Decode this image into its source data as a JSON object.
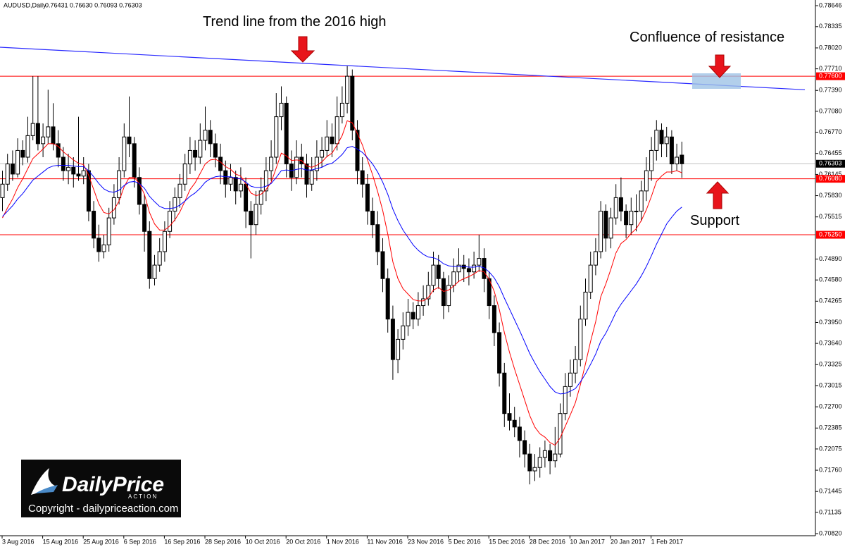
{
  "chart_data": {
    "type": "candlestick",
    "title": "AUDUSD,Daily",
    "title_values": "0.76431 0.76630 0.76093 0.76303",
    "ylim": [
      0.70789,
      0.7873
    ],
    "yticks": [
      0.78646,
      0.78335,
      {
        "value": 0.7802,
        "label": "0.78020"
      },
      {
        "value": 0.7771,
        "label": "0.77710"
      },
      {
        "value": 0.7739,
        "label": "0.77390"
      },
      {
        "value": 0.7708,
        "label": "0.77080"
      },
      {
        "value": 0.7677,
        "label": "0.76770"
      },
      0.76455,
      0.76145,
      {
        "value": 0.7583,
        "label": "0.75830"
      },
      0.75515,
      {
        "value": 0.7489,
        "label": "0.74890"
      },
      {
        "value": 0.7458,
        "label": "0.74580"
      },
      0.74265,
      {
        "value": 0.7395,
        "label": "0.73950"
      },
      {
        "value": 0.7364,
        "label": "0.73640"
      },
      0.73325,
      0.73015,
      {
        "value": 0.727,
        "label": "0.72700"
      },
      0.72385,
      0.72075,
      {
        "value": 0.7176,
        "label": "0.71760"
      },
      0.71445,
      0.71135,
      {
        "value": 0.7082,
        "label": "0.70820"
      }
    ],
    "categories": [
      "3 Aug 2016",
      null,
      null,
      null,
      null,
      null,
      null,
      null,
      "15 Aug 2016",
      null,
      null,
      null,
      null,
      null,
      null,
      null,
      "25 Aug 2016",
      null,
      null,
      null,
      null,
      null,
      null,
      null,
      "6 Sep 2016",
      null,
      null,
      null,
      null,
      null,
      null,
      null,
      "16 Sep 2016",
      null,
      null,
      null,
      null,
      null,
      null,
      null,
      "28 Sep 2016",
      null,
      null,
      null,
      null,
      null,
      null,
      null,
      "10 Oct 2016",
      null,
      null,
      null,
      null,
      null,
      null,
      null,
      "20 Oct 2016",
      null,
      null,
      null,
      null,
      null,
      null,
      null,
      "1 Nov 2016",
      null,
      null,
      null,
      null,
      null,
      null,
      null,
      "11 Nov 2016",
      null,
      null,
      null,
      null,
      null,
      null,
      null,
      "23 Nov 2016",
      null,
      null,
      null,
      null,
      null,
      null,
      null,
      "5 Dec 2016",
      null,
      null,
      null,
      null,
      null,
      null,
      null,
      "15 Dec 2016",
      null,
      null,
      null,
      null,
      null,
      null,
      null,
      "28 Dec 2016",
      null,
      null,
      null,
      null,
      null,
      null,
      null,
      "10 Jan 2017",
      null,
      null,
      null,
      null,
      null,
      null,
      null,
      "20 Jan 2017",
      null,
      null,
      null,
      null,
      null,
      null,
      null,
      "1 Feb 2017",
      null,
      null,
      null,
      null,
      null,
      null
    ],
    "candles": [
      [
        0.758,
        0.762,
        0.756,
        0.76
      ],
      [
        0.76,
        0.7645,
        0.759,
        0.763
      ],
      [
        0.763,
        0.765,
        0.7605,
        0.7615
      ],
      [
        0.7615,
        0.7668,
        0.761,
        0.765
      ],
      [
        0.765,
        0.7665,
        0.7628,
        0.764
      ],
      [
        0.764,
        0.77,
        0.7632,
        0.7672
      ],
      [
        0.7672,
        0.776,
        0.7665,
        0.769
      ],
      [
        0.769,
        0.776,
        0.765,
        0.766
      ],
      [
        0.766,
        0.769,
        0.764,
        0.767
      ],
      [
        0.767,
        0.774,
        0.766,
        0.7685
      ],
      [
        0.7685,
        0.772,
        0.765,
        0.766
      ],
      [
        0.766,
        0.768,
        0.7625,
        0.764
      ],
      [
        0.764,
        0.7655,
        0.7605,
        0.762
      ],
      [
        0.762,
        0.7645,
        0.76,
        0.7625
      ],
      [
        0.7625,
        0.764,
        0.7595,
        0.7615
      ],
      [
        0.7615,
        0.77,
        0.7605,
        0.7612
      ],
      [
        0.7612,
        0.764,
        0.76,
        0.762
      ],
      [
        0.762,
        0.763,
        0.7545,
        0.756
      ],
      [
        0.756,
        0.7575,
        0.7505,
        0.752
      ],
      [
        0.752,
        0.754,
        0.7485,
        0.75
      ],
      [
        0.75,
        0.7525,
        0.749,
        0.751
      ],
      [
        0.751,
        0.7565,
        0.75,
        0.755
      ],
      [
        0.755,
        0.76,
        0.754,
        0.758
      ],
      [
        0.758,
        0.764,
        0.757,
        0.762
      ],
      [
        0.762,
        0.769,
        0.761,
        0.767
      ],
      [
        0.767,
        0.773,
        0.764,
        0.766
      ],
      [
        0.766,
        0.767,
        0.7595,
        0.761
      ],
      [
        0.761,
        0.7625,
        0.7555,
        0.757
      ],
      [
        0.757,
        0.7585,
        0.75,
        0.753
      ],
      [
        0.753,
        0.7545,
        0.7445,
        0.746
      ],
      [
        0.746,
        0.7495,
        0.745,
        0.748
      ],
      [
        0.748,
        0.752,
        0.747,
        0.75
      ],
      [
        0.75,
        0.7545,
        0.7485,
        0.753
      ],
      [
        0.753,
        0.7575,
        0.752,
        0.756
      ],
      [
        0.756,
        0.7595,
        0.7545,
        0.758
      ],
      [
        0.758,
        0.7615,
        0.7565,
        0.76
      ],
      [
        0.76,
        0.7645,
        0.759,
        0.763
      ],
      [
        0.763,
        0.767,
        0.7615,
        0.765
      ],
      [
        0.765,
        0.7665,
        0.762,
        0.764
      ],
      [
        0.764,
        0.769,
        0.763,
        0.7665
      ],
      [
        0.7665,
        0.7715,
        0.765,
        0.768
      ],
      [
        0.768,
        0.7695,
        0.764,
        0.766
      ],
      [
        0.766,
        0.7675,
        0.7625,
        0.764
      ],
      [
        0.764,
        0.766,
        0.76,
        0.762
      ],
      [
        0.762,
        0.7635,
        0.758,
        0.76
      ],
      [
        0.76,
        0.763,
        0.759,
        0.761
      ],
      [
        0.761,
        0.762,
        0.757,
        0.759
      ],
      [
        0.759,
        0.7625,
        0.758,
        0.76
      ],
      [
        0.76,
        0.761,
        0.7535,
        0.756
      ],
      [
        0.756,
        0.7575,
        0.749,
        0.754
      ],
      [
        0.754,
        0.759,
        0.7525,
        0.757
      ],
      [
        0.757,
        0.761,
        0.7555,
        0.759
      ],
      [
        0.759,
        0.764,
        0.7575,
        0.762
      ],
      [
        0.762,
        0.7665,
        0.7605,
        0.764
      ],
      [
        0.764,
        0.7735,
        0.763,
        0.77
      ],
      [
        0.77,
        0.7745,
        0.768,
        0.772
      ],
      [
        0.772,
        0.773,
        0.761,
        0.763
      ],
      [
        0.763,
        0.765,
        0.759,
        0.761
      ],
      [
        0.761,
        0.7665,
        0.76,
        0.764
      ],
      [
        0.764,
        0.766,
        0.761,
        0.763
      ],
      [
        0.763,
        0.7645,
        0.758,
        0.76
      ],
      [
        0.76,
        0.764,
        0.759,
        0.762
      ],
      [
        0.762,
        0.7665,
        0.7605,
        0.764
      ],
      [
        0.764,
        0.767,
        0.7625,
        0.765
      ],
      [
        0.765,
        0.7695,
        0.764,
        0.767
      ],
      [
        0.767,
        0.769,
        0.764,
        0.766
      ],
      [
        0.766,
        0.773,
        0.765,
        0.77
      ],
      [
        0.77,
        0.7745,
        0.769,
        0.772
      ],
      [
        0.772,
        0.7775,
        0.7705,
        0.776
      ],
      [
        0.776,
        0.777,
        0.7665,
        0.768
      ],
      [
        0.768,
        0.7695,
        0.76,
        0.762
      ],
      [
        0.762,
        0.764,
        0.758,
        0.76
      ],
      [
        0.76,
        0.7615,
        0.754,
        0.756
      ],
      [
        0.756,
        0.758,
        0.752,
        0.754
      ],
      [
        0.754,
        0.756,
        0.748,
        0.75
      ],
      [
        0.75,
        0.752,
        0.744,
        0.746
      ],
      [
        0.746,
        0.7475,
        0.738,
        0.74
      ],
      [
        0.74,
        0.742,
        0.731,
        0.734
      ],
      [
        0.734,
        0.7385,
        0.732,
        0.737
      ],
      [
        0.737,
        0.741,
        0.7355,
        0.739
      ],
      [
        0.739,
        0.743,
        0.7375,
        0.741
      ],
      [
        0.741,
        0.7425,
        0.7385,
        0.74
      ],
      [
        0.74,
        0.744,
        0.739,
        0.742
      ],
      [
        0.742,
        0.745,
        0.7405,
        0.743
      ],
      [
        0.743,
        0.747,
        0.742,
        0.745
      ],
      [
        0.745,
        0.75,
        0.744,
        0.748
      ],
      [
        0.748,
        0.7495,
        0.7445,
        0.746
      ],
      [
        0.746,
        0.747,
        0.74,
        0.742
      ],
      [
        0.742,
        0.7465,
        0.741,
        0.745
      ],
      [
        0.745,
        0.749,
        0.744,
        0.747
      ],
      [
        0.747,
        0.7505,
        0.7455,
        0.748
      ],
      [
        0.748,
        0.7495,
        0.7455,
        0.7475
      ],
      [
        0.7475,
        0.749,
        0.745,
        0.747
      ],
      [
        0.747,
        0.75,
        0.746,
        0.748
      ],
      [
        0.748,
        0.7525,
        0.747,
        0.749
      ],
      [
        0.749,
        0.7505,
        0.744,
        0.746
      ],
      [
        0.746,
        0.747,
        0.74,
        0.742
      ],
      [
        0.742,
        0.7435,
        0.736,
        0.738
      ],
      [
        0.738,
        0.7395,
        0.73,
        0.732
      ],
      [
        0.732,
        0.7335,
        0.724,
        0.726
      ],
      [
        0.726,
        0.729,
        0.7235,
        0.725
      ],
      [
        0.725,
        0.727,
        0.7225,
        0.724
      ],
      [
        0.724,
        0.7255,
        0.7195,
        0.722
      ],
      [
        0.722,
        0.7235,
        0.718,
        0.72
      ],
      [
        0.72,
        0.7215,
        0.7155,
        0.7175
      ],
      [
        0.7175,
        0.72,
        0.716,
        0.718
      ],
      [
        0.718,
        0.721,
        0.7165,
        0.7195
      ],
      [
        0.7195,
        0.722,
        0.718,
        0.7205
      ],
      [
        0.7205,
        0.7215,
        0.717,
        0.719
      ],
      [
        0.719,
        0.724,
        0.718,
        0.72
      ],
      [
        0.72,
        0.7275,
        0.7195,
        0.726
      ],
      [
        0.726,
        0.732,
        0.725,
        0.73
      ],
      [
        0.73,
        0.734,
        0.7285,
        0.732
      ],
      [
        0.732,
        0.736,
        0.7305,
        0.734
      ],
      [
        0.734,
        0.742,
        0.733,
        0.74
      ],
      [
        0.74,
        0.746,
        0.739,
        0.744
      ],
      [
        0.744,
        0.75,
        0.743,
        0.748
      ],
      [
        0.748,
        0.752,
        0.7465,
        0.75
      ],
      [
        0.75,
        0.7575,
        0.749,
        0.756
      ],
      [
        0.756,
        0.757,
        0.75,
        0.752
      ],
      [
        0.752,
        0.7565,
        0.7505,
        0.755
      ],
      [
        0.755,
        0.76,
        0.754,
        0.758
      ],
      [
        0.758,
        0.761,
        0.7545,
        0.756
      ],
      [
        0.756,
        0.757,
        0.752,
        0.754
      ],
      [
        0.754,
        0.758,
        0.7525,
        0.756
      ],
      [
        0.756,
        0.7585,
        0.753,
        0.756
      ],
      [
        0.756,
        0.7605,
        0.7545,
        0.759
      ],
      [
        0.759,
        0.764,
        0.7575,
        0.762
      ],
      [
        0.762,
        0.767,
        0.7605,
        0.765
      ],
      [
        0.765,
        0.7695,
        0.7635,
        0.768
      ],
      [
        0.768,
        0.769,
        0.764,
        0.766
      ],
      [
        0.766,
        0.7685,
        0.764,
        0.767
      ],
      [
        0.767,
        0.768,
        0.7615,
        0.763
      ],
      [
        0.763,
        0.766,
        0.762,
        0.764
      ],
      [
        0.76431,
        0.7663,
        0.76093,
        0.76303
      ]
    ],
    "up_color": "#ffffff",
    "down_color": "#000000",
    "lines": [
      {
        "color": "#ff0000",
        "values": [
          0.755,
          0.7565,
          0.7578,
          0.7595,
          0.7608,
          0.7623,
          0.7638,
          0.7645,
          0.7652,
          0.766,
          0.766,
          0.7656,
          0.7648,
          0.7642,
          0.7636,
          0.7631,
          0.7629,
          0.7613,
          0.7592,
          0.7571,
          0.7558,
          0.7556,
          0.7562,
          0.7575,
          0.7596,
          0.761,
          0.761,
          0.7601,
          0.7585,
          0.7558,
          0.7541,
          0.7532,
          0.7532,
          0.7538,
          0.7547,
          0.7559,
          0.7575,
          0.7592,
          0.7602,
          0.7616,
          0.763,
          0.7636,
          0.7637,
          0.7633,
          0.7626,
          0.7622,
          0.7615,
          0.7612,
          0.76,
          0.7587,
          0.7583,
          0.7585,
          0.7592,
          0.7603,
          0.7624,
          0.7646,
          0.7642,
          0.7635,
          0.7636,
          0.7635,
          0.7627,
          0.7625,
          0.7628,
          0.7633,
          0.7641,
          0.7646,
          0.7658,
          0.7672,
          0.7694,
          0.7691,
          0.7675,
          0.7658,
          0.7636,
          0.7614,
          0.7589,
          0.7561,
          0.7526,
          0.7485,
          0.746,
          0.7445,
          0.7437,
          0.7429,
          0.7427,
          0.7427,
          0.7432,
          0.7443,
          0.7447,
          0.7441,
          0.7443,
          0.7449,
          0.7456,
          0.746,
          0.7463,
          0.7467,
          0.7472,
          0.747,
          0.7459,
          0.7441,
          0.7414,
          0.738,
          0.7351,
          0.7326,
          0.7303,
          0.728,
          0.7257,
          0.724,
          0.723,
          0.7225,
          0.7217,
          0.7213,
          0.7224,
          0.7241,
          0.7258,
          0.7276,
          0.7303,
          0.7334,
          0.7367,
          0.7396,
          0.7433,
          0.7452,
          0.7474,
          0.7498,
          0.7512,
          0.7518,
          0.7527,
          0.7534,
          0.7546,
          0.7562,
          0.7582,
          0.7604,
          0.7612,
          0.7618,
          0.7618,
          0.762,
          0.7617
        ]
      },
      {
        "color": "#0000ff",
        "values": [
          0.7552,
          0.756,
          0.7568,
          0.7578,
          0.7586,
          0.7596,
          0.7606,
          0.7612,
          0.7618,
          0.7624,
          0.7627,
          0.7628,
          0.7628,
          0.7628,
          0.7627,
          0.7626,
          0.7626,
          0.762,
          0.7611,
          0.7601,
          0.7593,
          0.7589,
          0.7588,
          0.7591,
          0.7598,
          0.7603,
          0.7604,
          0.7601,
          0.7594,
          0.7582,
          0.7574,
          0.7567,
          0.7564,
          0.7564,
          0.7565,
          0.7569,
          0.7575,
          0.7582,
          0.7587,
          0.7594,
          0.7603,
          0.7608,
          0.7611,
          0.7612,
          0.7611,
          0.7611,
          0.7609,
          0.7608,
          0.7603,
          0.7597,
          0.7595,
          0.7595,
          0.7597,
          0.7601,
          0.761,
          0.762,
          0.7621,
          0.762,
          0.7622,
          0.7623,
          0.7621,
          0.7621,
          0.7623,
          0.7625,
          0.7629,
          0.7631,
          0.7637,
          0.7644,
          0.7654,
          0.7656,
          0.7652,
          0.7647,
          0.7639,
          0.763,
          0.7618,
          0.7603,
          0.7585,
          0.7563,
          0.7546,
          0.7532,
          0.7521,
          0.751,
          0.7502,
          0.7496,
          0.7492,
          0.7491,
          0.7488,
          0.7482,
          0.7479,
          0.7478,
          0.7478,
          0.7478,
          0.7477,
          0.7477,
          0.7478,
          0.7476,
          0.747,
          0.7461,
          0.7448,
          0.7431,
          0.7415,
          0.7399,
          0.7383,
          0.7366,
          0.7349,
          0.7335,
          0.7322,
          0.7311,
          0.73,
          0.7292,
          0.7289,
          0.729,
          0.7293,
          0.7297,
          0.7307,
          0.7319,
          0.7333,
          0.7348,
          0.7367,
          0.7379,
          0.7394,
          0.741,
          0.7422,
          0.7432,
          0.7442,
          0.7452,
          0.7464,
          0.7478,
          0.7494,
          0.7511,
          0.7526,
          0.7541,
          0.7551,
          0.756,
          0.7566
        ]
      }
    ],
    "levels": [
      {
        "value": 0.776,
        "label": "0.77600"
      },
      {
        "value": 0.7608,
        "label": "0.76080"
      },
      {
        "value": 0.7525,
        "label": "0.75250"
      }
    ],
    "level_color": "#ff0000",
    "last_price": {
      "value": 0.76303,
      "label": "0.76303"
    },
    "trendline": {
      "values": [
        0.7803,
        0.774
      ],
      "color": "#2a2aff"
    },
    "annotations": [
      "Trend line from the 2016 high",
      "Confluence of resistance",
      "Support"
    ]
  },
  "logo": {
    "brand": "DailyPrice",
    "tagline": "ACTION",
    "copyright": "Copyright - dailypriceaction.com"
  }
}
